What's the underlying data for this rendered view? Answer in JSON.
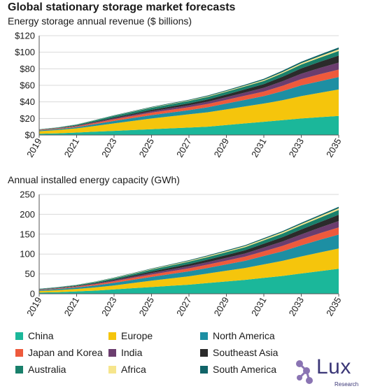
{
  "title": "Global stationary storage market forecasts",
  "colors": [
    "#1bb79a",
    "#f5c50c",
    "#1d8fa3",
    "#ee5a3c",
    "#6b3d6e",
    "#2b2b2b",
    "#19806b",
    "#f6e58c",
    "#106468"
  ],
  "legend": [
    "China",
    "Europe",
    "North America",
    "Japan and Korea",
    "India",
    "Southeast Asia",
    "Australia",
    "Africa",
    "South America"
  ],
  "logo": {
    "text": "Lux",
    "subtext": "Research"
  },
  "chart_data": [
    {
      "type": "area",
      "stacked": true,
      "subtitle": "Energy storage annual revenue ($ billions)",
      "x": [
        2019,
        2020,
        2021,
        2022,
        2023,
        2024,
        2025,
        2026,
        2027,
        2028,
        2029,
        2030,
        2031,
        2032,
        2033,
        2034,
        2035
      ],
      "xticks": [
        "2019",
        "2021",
        "2023",
        "2025",
        "2027",
        "2029",
        "2031",
        "2033",
        "2035"
      ],
      "yticks": [
        "$0",
        "$20",
        "$40",
        "$60",
        "$80",
        "$100",
        "$120"
      ],
      "ylim": [
        0,
        120
      ],
      "grid": true,
      "series": [
        {
          "name": "China",
          "values": [
            1.5,
            2,
            3,
            4,
            5,
            6,
            7,
            8,
            9,
            10,
            12,
            14,
            16,
            18,
            20,
            21.5,
            23
          ]
        },
        {
          "name": "Europe",
          "values": [
            3,
            4,
            5,
            7,
            9,
            11,
            13,
            14.5,
            16,
            17.5,
            19,
            20.5,
            22,
            24,
            27,
            29.5,
            32
          ]
        },
        {
          "name": "North America",
          "values": [
            1,
            1.2,
            1.5,
            2.2,
            3,
            3.5,
            4,
            4.5,
            5,
            6,
            7,
            8,
            9,
            11,
            13,
            14,
            15
          ]
        },
        {
          "name": "Japan and Korea",
          "values": [
            0.5,
            0.7,
            1,
            1.5,
            2,
            2.5,
            3,
            3.3,
            3.6,
            4,
            4.5,
            5,
            5.5,
            6.5,
            7.5,
            8.5,
            9
          ]
        },
        {
          "name": "India",
          "values": [
            0.2,
            0.3,
            0.5,
            0.8,
            1.1,
            1.4,
            1.7,
            2,
            2.3,
            2.7,
            3.2,
            3.8,
            4.5,
            5.5,
            6.5,
            7.5,
            8.5
          ]
        },
        {
          "name": "Southeast Asia",
          "values": [
            0.2,
            0.3,
            0.5,
            0.8,
            1.1,
            1.4,
            1.7,
            2,
            2.3,
            2.7,
            3.2,
            3.8,
            4.5,
            5.5,
            6.5,
            7.5,
            8.5
          ]
        },
        {
          "name": "Australia",
          "values": [
            0.4,
            0.6,
            1,
            1.5,
            2,
            2.3,
            2.6,
            2.8,
            3,
            3.2,
            3.4,
            3.6,
            3.8,
            4.2,
            4.6,
            5,
            5.5
          ]
        },
        {
          "name": "Africa",
          "values": [
            0.05,
            0.1,
            0.15,
            0.2,
            0.3,
            0.35,
            0.4,
            0.5,
            0.6,
            0.7,
            0.8,
            1,
            1.2,
            1.4,
            1.6,
            1.8,
            2
          ]
        },
        {
          "name": "South America",
          "values": [
            0.1,
            0.15,
            0.2,
            0.3,
            0.4,
            0.5,
            0.6,
            0.7,
            0.8,
            0.9,
            1,
            1.2,
            1.4,
            1.6,
            1.8,
            2,
            2.2
          ]
        }
      ]
    },
    {
      "type": "area",
      "stacked": true,
      "subtitle": "Annual installed energy capacity (GWh)",
      "x": [
        2019,
        2020,
        2021,
        2022,
        2023,
        2024,
        2025,
        2026,
        2027,
        2028,
        2029,
        2030,
        2031,
        2032,
        2033,
        2034,
        2035
      ],
      "xticks": [
        "2019",
        "2021",
        "2023",
        "2025",
        "2027",
        "2029",
        "2031",
        "2033",
        "2035"
      ],
      "yticks": [
        "0",
        "50",
        "100",
        "150",
        "200",
        "250"
      ],
      "ylim": [
        0,
        250
      ],
      "grid": true,
      "series": [
        {
          "name": "China",
          "values": [
            3,
            4,
            6,
            8,
            11,
            14,
            17,
            20,
            23,
            27,
            31,
            35,
            40,
            45,
            51,
            57,
            63
          ]
        },
        {
          "name": "Europe",
          "values": [
            4,
            5,
            6,
            8,
            10,
            13,
            16,
            18.5,
            21,
            24,
            27,
            30,
            34,
            38,
            43,
            47,
            51
          ]
        },
        {
          "name": "North America",
          "values": [
            2,
            3,
            4,
            5,
            6.5,
            8,
            9.5,
            11,
            12.5,
            14,
            16,
            18,
            21,
            24,
            28,
            32,
            35
          ]
        },
        {
          "name": "Japan and Korea",
          "values": [
            1,
            1.5,
            2,
            3,
            4,
            5,
            6,
            6.8,
            7.6,
            8.5,
            9.5,
            10.5,
            12,
            13.5,
            15,
            16.5,
            18
          ]
        },
        {
          "name": "India",
          "values": [
            0.5,
            0.7,
            1,
            1.5,
            2.2,
            3,
            3.8,
            4.6,
            5.4,
            6.2,
            7,
            8,
            9.5,
            11,
            12.5,
            14,
            16
          ]
        },
        {
          "name": "Southeast Asia",
          "values": [
            0.5,
            0.7,
            1,
            1.5,
            2.2,
            3,
            3.8,
            4.6,
            5.4,
            6.2,
            7,
            8,
            9.5,
            11,
            12.5,
            14,
            16
          ]
        },
        {
          "name": "Australia",
          "values": [
            1,
            1.3,
            1.8,
            2.5,
            3.3,
            4,
            4.8,
            5.4,
            6,
            6.6,
            7.2,
            7.8,
            8.5,
            9.2,
            10,
            11,
            12
          ]
        },
        {
          "name": "Africa",
          "values": [
            0.2,
            0.3,
            0.4,
            0.6,
            0.8,
            1,
            1.3,
            1.6,
            1.9,
            2.2,
            2.5,
            2.8,
            3.1,
            3.4,
            3.7,
            4,
            4.3
          ]
        },
        {
          "name": "South America",
          "values": [
            0.3,
            0.4,
            0.5,
            0.7,
            0.9,
            1.1,
            1.3,
            1.5,
            1.7,
            1.9,
            2.1,
            2.3,
            2.5,
            2.7,
            3,
            3.3,
            3.6
          ]
        }
      ]
    }
  ]
}
